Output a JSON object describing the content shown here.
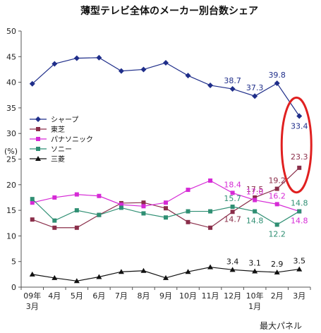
{
  "chart_data": {
    "type": "line",
    "title": "薄型テレビ全体のメーカー別台数シェア",
    "ylabel": "(%)",
    "xlabel": "",
    "footer": "最大パネル",
    "ylim": [
      0,
      50
    ],
    "yticks": [
      0,
      5,
      10,
      15,
      20,
      25,
      30,
      35,
      40,
      45,
      50
    ],
    "categories": [
      {
        "line1": "09年",
        "line2": "3月"
      },
      {
        "line1": "4月",
        "line2": ""
      },
      {
        "line1": "5月",
        "line2": ""
      },
      {
        "line1": "6月",
        "line2": ""
      },
      {
        "line1": "7月",
        "line2": ""
      },
      {
        "line1": "8月",
        "line2": ""
      },
      {
        "line1": "9月",
        "line2": ""
      },
      {
        "line1": "10月",
        "line2": ""
      },
      {
        "line1": "11月",
        "line2": ""
      },
      {
        "line1": "12月",
        "line2": ""
      },
      {
        "line1": "10年",
        "line2": "1月"
      },
      {
        "line1": "2月",
        "line2": ""
      },
      {
        "line1": "3月",
        "line2": ""
      }
    ],
    "grid": false,
    "legend_position": "left-middle",
    "series": [
      {
        "name": "シャープ",
        "color": "#1f2e8a",
        "marker": "diamond",
        "values": [
          39.7,
          43.6,
          44.7,
          44.8,
          42.2,
          42.5,
          43.8,
          41.3,
          39.4,
          38.7,
          37.3,
          39.8,
          33.4
        ],
        "labels": [
          "",
          "",
          "",
          "",
          "",
          "",
          "",
          "",
          "",
          "38.7",
          "37.3",
          "39.8",
          "33.4"
        ]
      },
      {
        "name": "東芝",
        "color": "#8a2e4a",
        "marker": "square",
        "values": [
          13.2,
          11.6,
          11.6,
          14.1,
          16.4,
          16.5,
          15.4,
          12.7,
          11.6,
          14.7,
          17.5,
          19.2,
          23.3
        ],
        "labels": [
          "",
          "",
          "",
          "",
          "",
          "",
          "",
          "",
          "",
          "14.7",
          "17.5",
          "19.2",
          "23.3"
        ]
      },
      {
        "name": "パナソニック",
        "color": "#d62ad6",
        "marker": "square",
        "values": [
          16.5,
          17.5,
          18.1,
          17.8,
          16.1,
          15.8,
          16.5,
          19.0,
          20.8,
          18.4,
          17.0,
          16.2,
          14.8
        ],
        "labels": [
          "",
          "",
          "",
          "",
          "",
          "",
          "",
          "",
          "",
          "18.4",
          "17.0",
          "16.2",
          "14.8"
        ]
      },
      {
        "name": "ソニー",
        "color": "#2f8f73",
        "marker": "square",
        "values": [
          17.2,
          13.0,
          15.0,
          14.1,
          15.5,
          14.4,
          13.6,
          14.8,
          14.8,
          15.7,
          14.8,
          12.2,
          14.8
        ],
        "labels": [
          "",
          "",
          "",
          "",
          "",
          "",
          "",
          "",
          "",
          "15.7",
          "14.8",
          "12.2",
          "14.8"
        ]
      },
      {
        "name": "三菱",
        "color": "#111111",
        "marker": "triangle",
        "values": [
          2.5,
          1.8,
          1.2,
          2.0,
          3.0,
          3.2,
          1.8,
          3.0,
          3.9,
          3.4,
          3.1,
          2.9,
          3.5
        ],
        "labels": [
          "",
          "",
          "",
          "",
          "",
          "",
          "",
          "",
          "",
          "3.4",
          "3.1",
          "2.9",
          "3.5"
        ]
      }
    ],
    "highlight": {
      "color": "#e02020"
    }
  }
}
